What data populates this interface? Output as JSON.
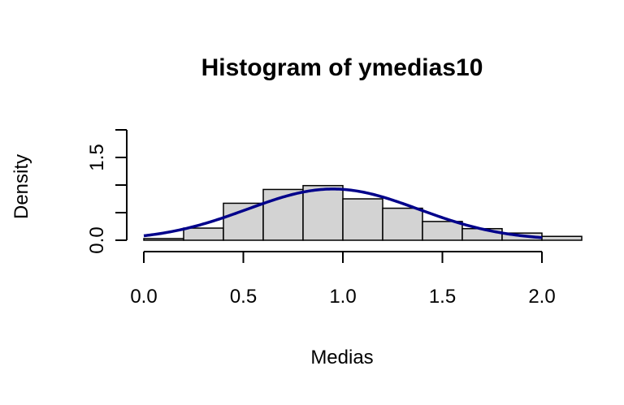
{
  "chart_data": {
    "type": "bar",
    "title": "Histogram of ymedias10",
    "xlabel": "Medias",
    "ylabel": "Density",
    "xlim": [
      0,
      2.0
    ],
    "ylim": [
      0,
      2.0
    ],
    "x_ticks": [
      0.0,
      0.5,
      1.0,
      1.5,
      2.0
    ],
    "x_tick_labels": [
      "0.0",
      "0.5",
      "1.0",
      "1.5",
      "2.0"
    ],
    "y_ticks": [
      0.0,
      0.5,
      1.0,
      1.5,
      2.0
    ],
    "y_tick_labels": [
      "0.0",
      "",
      "",
      "1.5",
      ""
    ],
    "bins": [
      {
        "start": 0.0,
        "end": 0.2,
        "density": 0.03
      },
      {
        "start": 0.2,
        "end": 0.4,
        "density": 0.22
      },
      {
        "start": 0.4,
        "end": 0.6,
        "density": 0.67
      },
      {
        "start": 0.6,
        "end": 0.8,
        "density": 0.92
      },
      {
        "start": 0.8,
        "end": 1.0,
        "density": 0.99
      },
      {
        "start": 1.0,
        "end": 1.2,
        "density": 0.75
      },
      {
        "start": 1.2,
        "end": 1.4,
        "density": 0.58
      },
      {
        "start": 1.4,
        "end": 1.6,
        "density": 0.34
      },
      {
        "start": 1.6,
        "end": 1.8,
        "density": 0.21
      },
      {
        "start": 1.8,
        "end": 2.0,
        "density": 0.13
      },
      {
        "start": 2.0,
        "end": 2.2,
        "density": 0.07
      }
    ],
    "density_curve": {
      "mean": 0.95,
      "sd": 0.43,
      "color": "#00008b"
    },
    "bar_color": "#d3d3d3"
  }
}
